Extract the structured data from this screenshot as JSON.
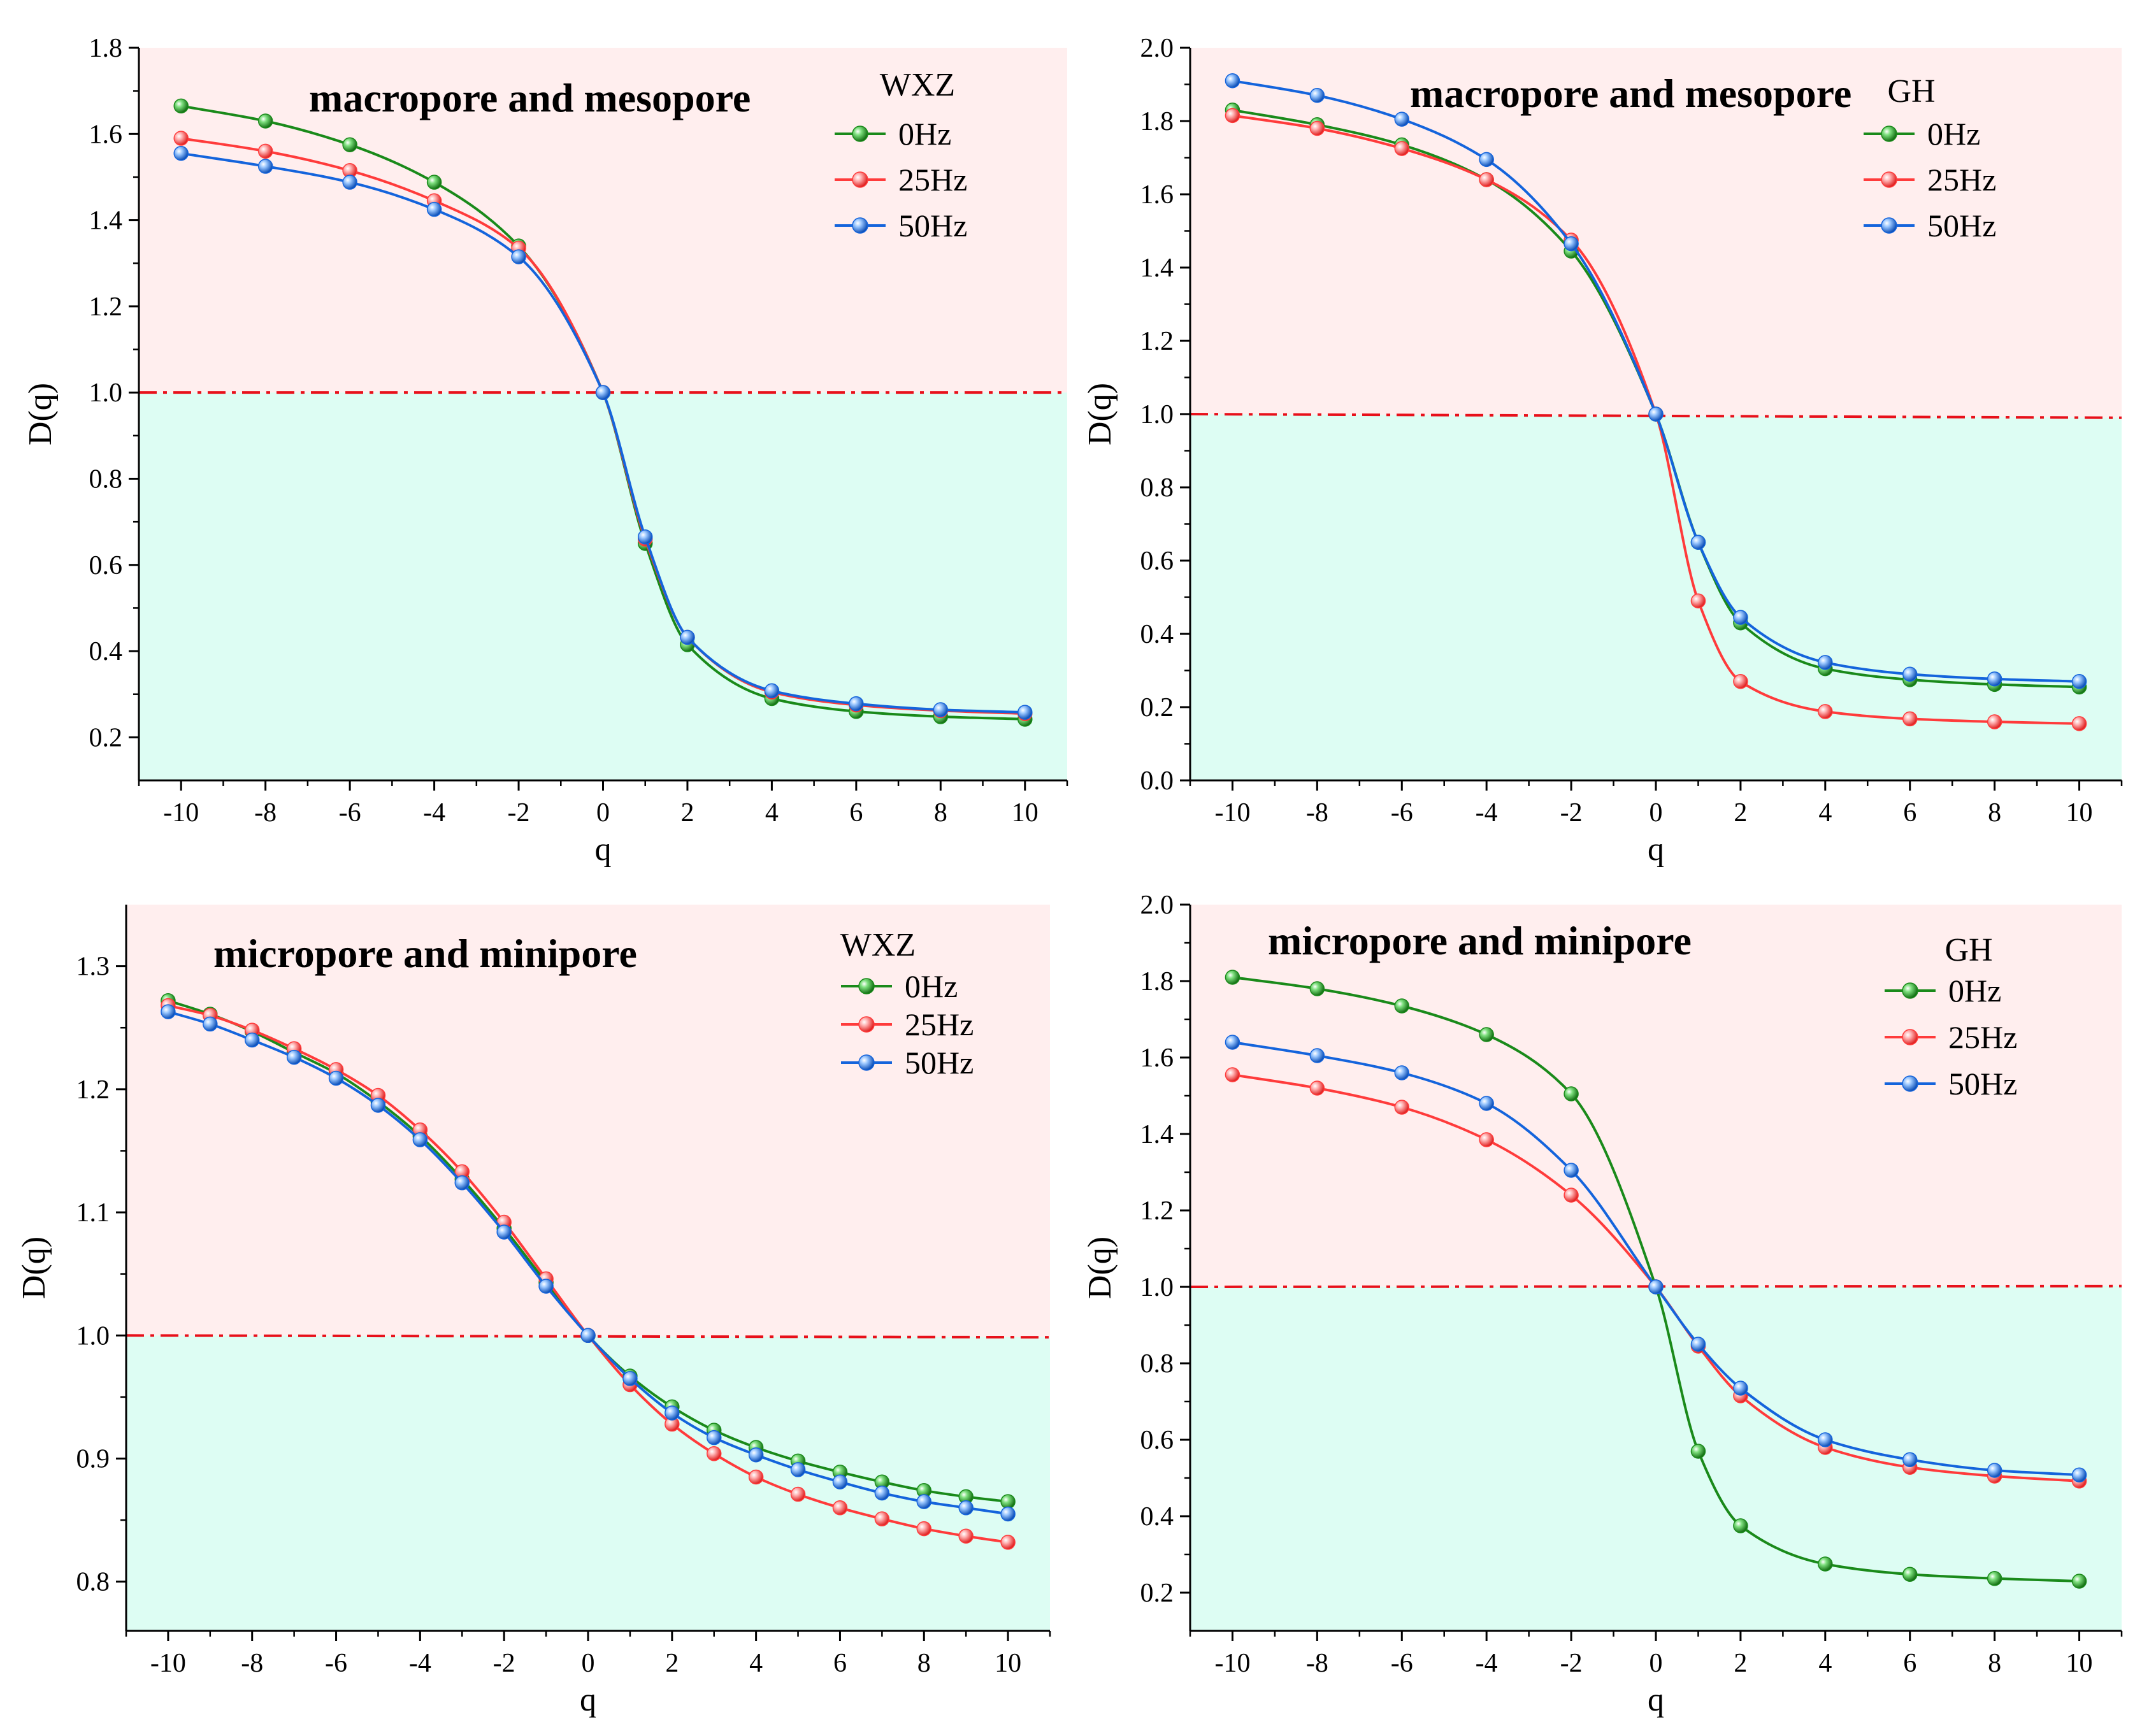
{
  "chart_data": [
    {
      "type": "line",
      "title": "macropore and mesopore",
      "legend_title": "WXZ",
      "xlabel": "q",
      "ylabel": "D(q)",
      "xlim": [
        -11,
        11
      ],
      "ylim": [
        0.1,
        1.8
      ],
      "x_ticks": [
        -10,
        -8,
        -6,
        -4,
        -2,
        0,
        2,
        4,
        6,
        8,
        10
      ],
      "y_ticks": [
        0.2,
        0.4,
        0.6,
        0.8,
        1.0,
        1.2,
        1.4,
        1.6,
        1.8
      ],
      "reference_line": {
        "y": 1.0,
        "y_end": 1.0
      },
      "x": [
        -10,
        -8,
        -6,
        -4,
        -2,
        0,
        1,
        2,
        4,
        6,
        8,
        10
      ],
      "series": [
        {
          "name": "0Hz",
          "color": "#1a8a1a",
          "values": [
            1.665,
            1.63,
            1.575,
            1.488,
            1.34,
            1.0,
            0.65,
            0.415,
            0.29,
            0.26,
            0.248,
            0.242
          ]
        },
        {
          "name": "25Hz",
          "color": "#ff3b3b",
          "values": [
            1.59,
            1.56,
            1.515,
            1.445,
            1.335,
            1.0,
            0.66,
            0.432,
            0.305,
            0.275,
            0.262,
            0.255
          ]
        },
        {
          "name": "50Hz",
          "color": "#1464dc",
          "values": [
            1.555,
            1.525,
            1.488,
            1.425,
            1.315,
            1.0,
            0.665,
            0.432,
            0.308,
            0.278,
            0.264,
            0.258
          ]
        }
      ]
    },
    {
      "type": "line",
      "title": "macropore and mesopore",
      "legend_title": "GH",
      "xlabel": "q",
      "ylabel": "D(q)",
      "xlim": [
        -11,
        11
      ],
      "ylim": [
        0.0,
        2.0
      ],
      "x_ticks": [
        -10,
        -8,
        -6,
        -4,
        -2,
        0,
        2,
        4,
        6,
        8,
        10
      ],
      "y_ticks": [
        0.0,
        0.2,
        0.4,
        0.6,
        0.8,
        1.0,
        1.2,
        1.4,
        1.6,
        1.8,
        2.0
      ],
      "reference_line": {
        "y": 1.0,
        "y_end": 0.99
      },
      "x": [
        -10,
        -8,
        -6,
        -4,
        -2,
        0,
        1,
        2,
        4,
        6,
        8,
        10
      ],
      "series": [
        {
          "name": "0Hz",
          "color": "#1a8a1a",
          "values": [
            1.83,
            1.79,
            1.735,
            1.64,
            1.445,
            1.0,
            0.65,
            0.43,
            0.305,
            0.275,
            0.262,
            0.255
          ]
        },
        {
          "name": "25Hz",
          "color": "#ff3b3b",
          "values": [
            1.815,
            1.78,
            1.725,
            1.64,
            1.475,
            1.0,
            0.49,
            0.27,
            0.188,
            0.168,
            0.16,
            0.155
          ]
        },
        {
          "name": "50Hz",
          "color": "#1464dc",
          "values": [
            1.91,
            1.87,
            1.805,
            1.695,
            1.465,
            1.0,
            0.65,
            0.445,
            0.322,
            0.29,
            0.277,
            0.27
          ]
        }
      ]
    },
    {
      "type": "line",
      "title": "micropore and minipore",
      "legend_title": "WXZ",
      "xlabel": "q",
      "ylabel": "D(q)",
      "xlim": [
        -11,
        11
      ],
      "ylim": [
        0.76,
        1.35
      ],
      "x_ticks": [
        -10,
        -8,
        -6,
        -4,
        -2,
        0,
        2,
        4,
        6,
        8,
        10
      ],
      "y_ticks": [
        0.8,
        0.9,
        1.0,
        1.1,
        1.2,
        1.3
      ],
      "reference_line": {
        "y": 1.0,
        "y_end": 0.9985
      },
      "x": [
        -10,
        -9,
        -8,
        -7,
        -6,
        -5,
        -4,
        -3,
        -2,
        -1,
        0,
        1,
        2,
        3,
        4,
        5,
        6,
        7,
        8,
        9,
        10
      ],
      "series": [
        {
          "name": "0Hz",
          "color": "#1a8a1a",
          "values": [
            1.272,
            1.261,
            1.247,
            1.23,
            1.213,
            1.19,
            1.162,
            1.127,
            1.087,
            1.043,
            1.0,
            0.967,
            0.942,
            0.923,
            0.909,
            0.898,
            0.889,
            0.881,
            0.874,
            0.869,
            0.865
          ]
        },
        {
          "name": "25Hz",
          "color": "#ff3b3b",
          "values": [
            1.268,
            1.26,
            1.248,
            1.233,
            1.216,
            1.195,
            1.167,
            1.133,
            1.092,
            1.046,
            1.0,
            0.96,
            0.928,
            0.904,
            0.885,
            0.871,
            0.86,
            0.851,
            0.843,
            0.837,
            0.832
          ]
        },
        {
          "name": "50Hz",
          "color": "#1464dc",
          "values": [
            1.263,
            1.253,
            1.24,
            1.226,
            1.209,
            1.187,
            1.159,
            1.124,
            1.084,
            1.04,
            1.0,
            0.965,
            0.937,
            0.917,
            0.903,
            0.891,
            0.881,
            0.872,
            0.865,
            0.86,
            0.855
          ]
        }
      ]
    },
    {
      "type": "line",
      "title": "micropore and minipore",
      "legend_title": "GH",
      "xlabel": "q",
      "ylabel": "D(q)",
      "xlim": [
        -11,
        11
      ],
      "ylim": [
        0.1,
        2.0
      ],
      "x_ticks": [
        -10,
        -8,
        -6,
        -4,
        -2,
        0,
        2,
        4,
        6,
        8,
        10
      ],
      "y_ticks": [
        0.2,
        0.4,
        0.6,
        0.8,
        1.0,
        1.2,
        1.4,
        1.6,
        1.8,
        2.0
      ],
      "reference_line": {
        "y": 1.0,
        "y_end": 1.002
      },
      "x": [
        -10,
        -8,
        -6,
        -4,
        -2,
        0,
        1,
        2,
        4,
        6,
        8,
        10
      ],
      "series": [
        {
          "name": "0Hz",
          "color": "#1a8a1a",
          "values": [
            1.81,
            1.78,
            1.735,
            1.66,
            1.505,
            1.0,
            0.57,
            0.375,
            0.275,
            0.248,
            0.237,
            0.23
          ]
        },
        {
          "name": "25Hz",
          "color": "#ff3b3b",
          "values": [
            1.555,
            1.52,
            1.47,
            1.385,
            1.24,
            1.0,
            0.845,
            0.715,
            0.58,
            0.528,
            0.505,
            0.492
          ]
        },
        {
          "name": "50Hz",
          "color": "#1464dc",
          "values": [
            1.64,
            1.605,
            1.56,
            1.48,
            1.305,
            1.0,
            0.85,
            0.735,
            0.6,
            0.548,
            0.52,
            0.508
          ]
        }
      ]
    }
  ]
}
